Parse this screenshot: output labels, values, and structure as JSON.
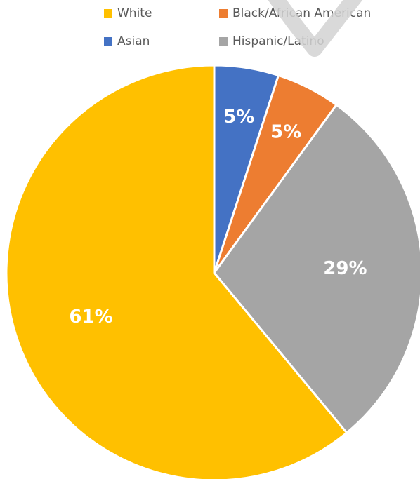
{
  "chart_data": {
    "type": "pie",
    "start_angle_deg": 0,
    "direction": "clockwise",
    "legend_position": "top",
    "slices": [
      {
        "name": "Asian",
        "value": 5,
        "label": "5%",
        "color": "#4472C4"
      },
      {
        "name": "Black/African American",
        "value": 5,
        "label": "5%",
        "color": "#ED7D31"
      },
      {
        "name": "Hispanic/Latino",
        "value": 29,
        "label": "29%",
        "color": "#A5A5A5"
      },
      {
        "name": "White",
        "value": 61,
        "label": "61%",
        "color": "#FFC000"
      }
    ],
    "legend": [
      {
        "name": "White",
        "color": "#FFC000"
      },
      {
        "name": "Black/African American",
        "color": "#ED7D31"
      },
      {
        "name": "Asian",
        "color": "#4472C4"
      },
      {
        "name": "Hispanic/Latino",
        "color": "#A5A5A5"
      }
    ]
  }
}
